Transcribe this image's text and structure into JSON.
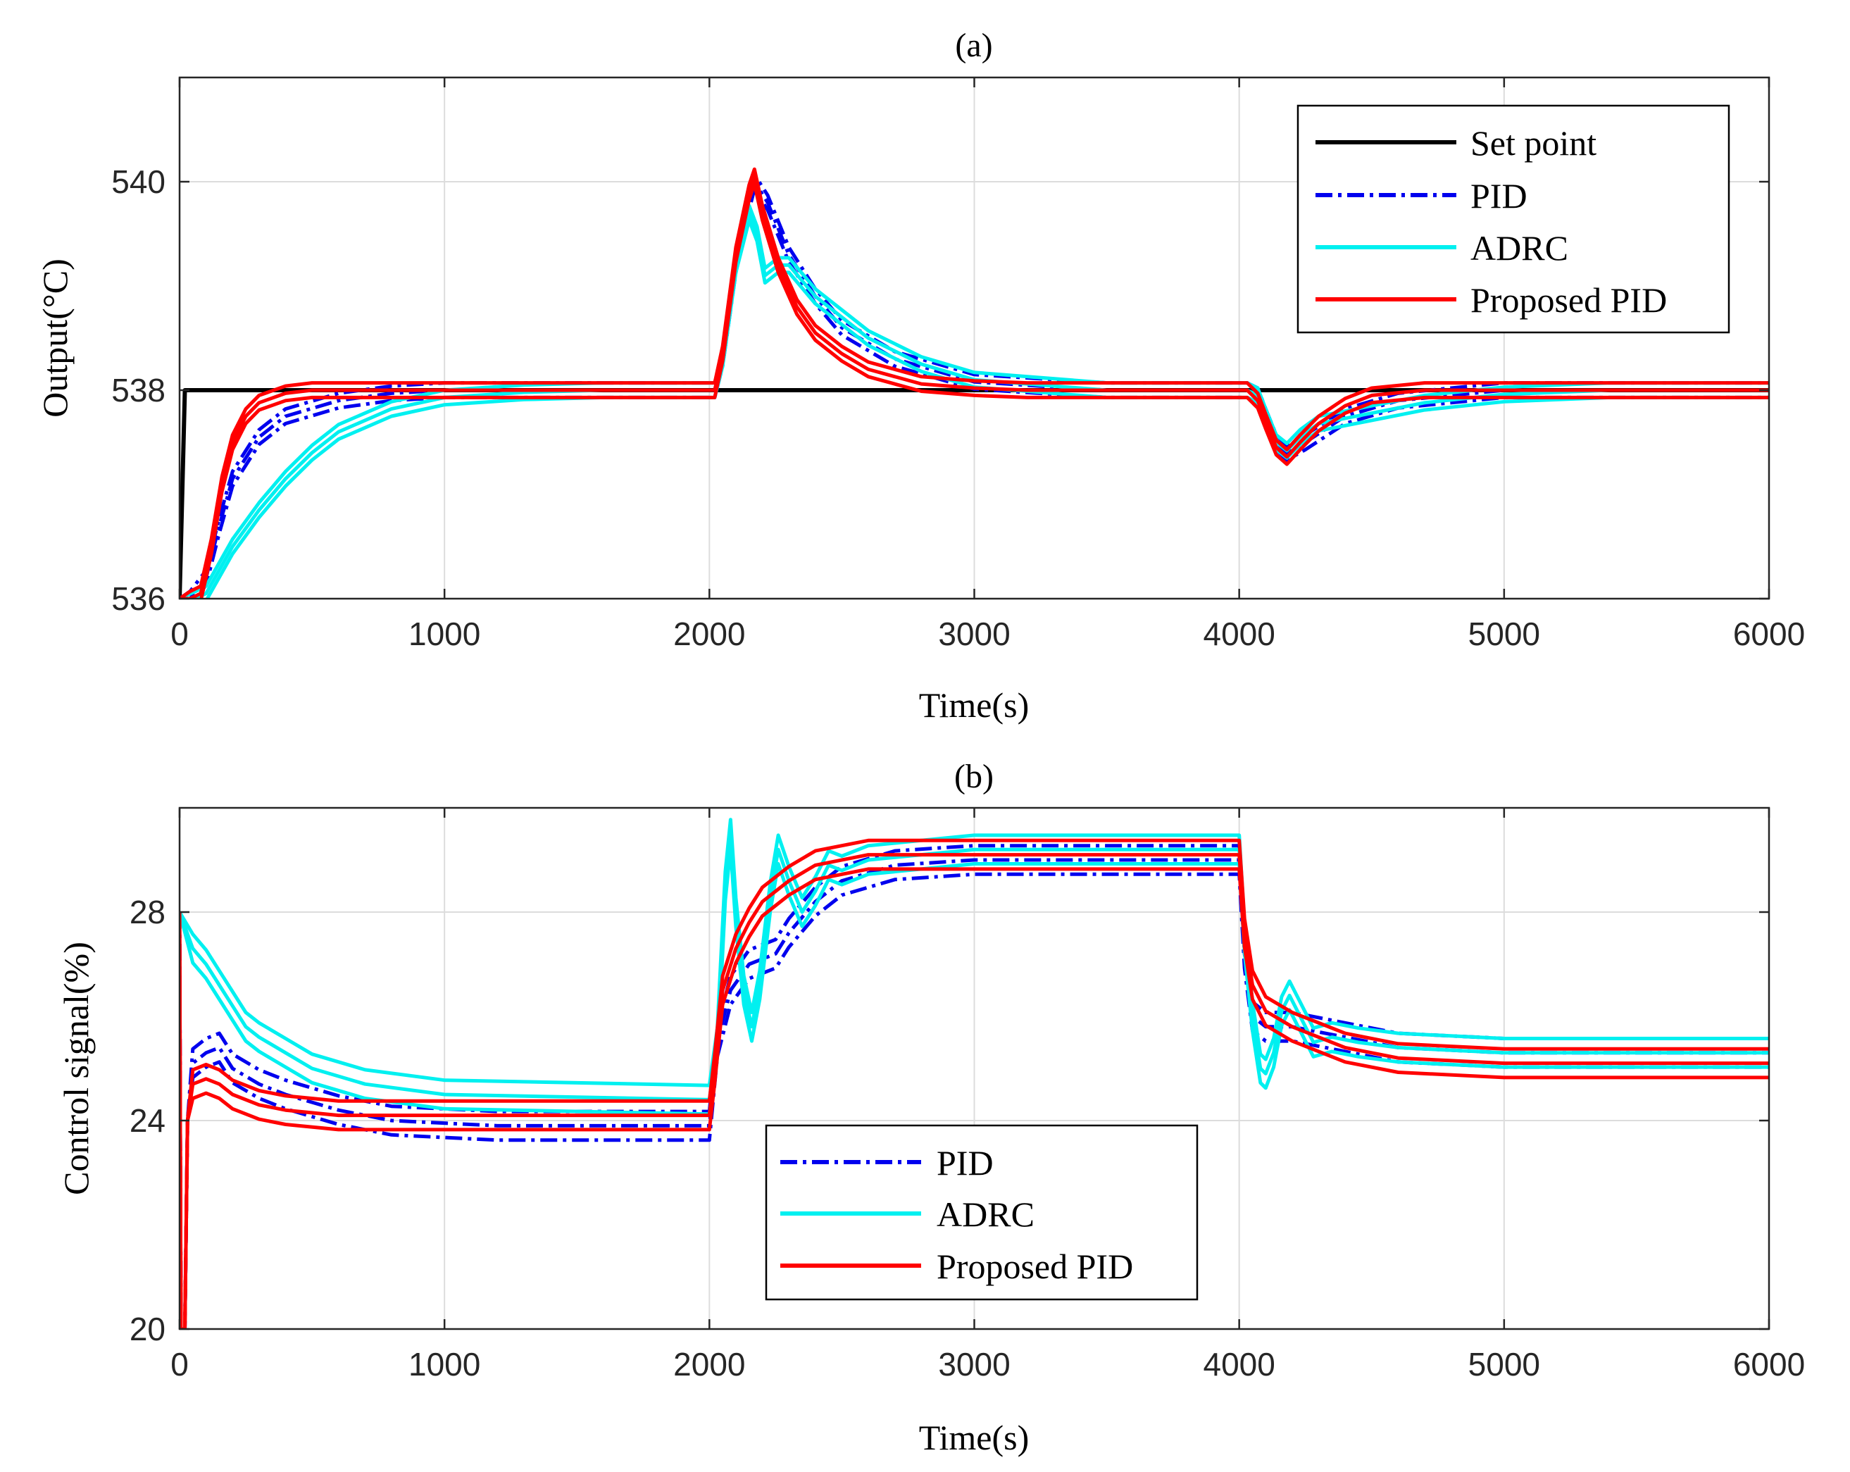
{
  "chart_data": [
    {
      "id": "a",
      "type": "line",
      "title": "(a)",
      "xlabel": "Time(s)",
      "ylabel": "Output(°C)",
      "xlim": [
        0,
        6000
      ],
      "ylim": [
        536,
        541
      ],
      "xticks": [
        0,
        1000,
        2000,
        3000,
        4000,
        5000,
        6000
      ],
      "yticks": [
        536,
        538,
        540
      ],
      "grid": true,
      "legend_position": "top-right",
      "series": [
        {
          "name": "Set point",
          "color": "#000000",
          "style": "solid",
          "points": [
            [
              0,
              536
            ],
            [
              20,
              538
            ],
            [
              6000,
              538
            ]
          ]
        },
        {
          "name": "PID",
          "color": "#0000ee",
          "style": "dashdot",
          "variants": [
            0.0,
            0.5,
            1.0
          ],
          "points": [
            [
              0,
              536
            ],
            [
              40,
              536
            ],
            [
              100,
              536.2
            ],
            [
              150,
              536.7
            ],
            [
              200,
              537.15
            ],
            [
              300,
              537.55
            ],
            [
              400,
              537.75
            ],
            [
              600,
              537.9
            ],
            [
              800,
              537.97
            ],
            [
              1000,
              538
            ],
            [
              2020,
              538
            ],
            [
              2050,
              538.3
            ],
            [
              2100,
              539.2
            ],
            [
              2150,
              539.8
            ],
            [
              2170,
              540.0
            ],
            [
              2220,
              539.8
            ],
            [
              2300,
              539.3
            ],
            [
              2400,
              538.9
            ],
            [
              2500,
              538.6
            ],
            [
              2700,
              538.3
            ],
            [
              3000,
              538.08
            ],
            [
              3500,
              538
            ],
            [
              4030,
              538
            ],
            [
              4070,
              537.95
            ],
            [
              4100,
              537.75
            ],
            [
              4140,
              537.5
            ],
            [
              4180,
              537.4
            ],
            [
              4250,
              537.5
            ],
            [
              4400,
              537.75
            ],
            [
              4600,
              537.9
            ],
            [
              5000,
              538
            ],
            [
              6000,
              538
            ]
          ]
        },
        {
          "name": "ADRC",
          "color": "#00f0f0",
          "style": "solid",
          "variants": [
            0.0,
            0.5,
            1.0
          ],
          "points": [
            [
              0,
              536
            ],
            [
              60,
              536
            ],
            [
              100,
              536.05
            ],
            [
              200,
              536.5
            ],
            [
              300,
              536.85
            ],
            [
              400,
              537.15
            ],
            [
              500,
              537.4
            ],
            [
              600,
              537.6
            ],
            [
              800,
              537.82
            ],
            [
              1000,
              537.93
            ],
            [
              1300,
              537.98
            ],
            [
              1600,
              538
            ],
            [
              2020,
              538
            ],
            [
              2050,
              538.3
            ],
            [
              2100,
              539.2
            ],
            [
              2150,
              539.7
            ],
            [
              2180,
              539.5
            ],
            [
              2210,
              539.1
            ],
            [
              2260,
              539.2
            ],
            [
              2300,
              539.2
            ],
            [
              2400,
              538.9
            ],
            [
              2500,
              538.7
            ],
            [
              2600,
              538.5
            ],
            [
              2800,
              538.25
            ],
            [
              3000,
              538.1
            ],
            [
              3500,
              538
            ],
            [
              4030,
              538
            ],
            [
              4070,
              537.95
            ],
            [
              4100,
              537.75
            ],
            [
              4140,
              537.5
            ],
            [
              4180,
              537.42
            ],
            [
              4230,
              537.55
            ],
            [
              4300,
              537.68
            ],
            [
              4500,
              537.78
            ],
            [
              4700,
              537.88
            ],
            [
              5000,
              537.96
            ],
            [
              5400,
              538
            ],
            [
              6000,
              538
            ]
          ]
        },
        {
          "name": "Proposed PID",
          "color": "#ff0000",
          "style": "solid",
          "variants": [
            0.0,
            0.5,
            1.0
          ],
          "points": [
            [
              0,
              536
            ],
            [
              40,
              536
            ],
            [
              80,
              536.05
            ],
            [
              120,
              536.5
            ],
            [
              160,
              537.1
            ],
            [
              200,
              537.5
            ],
            [
              250,
              537.75
            ],
            [
              300,
              537.88
            ],
            [
              400,
              537.97
            ],
            [
              500,
              538
            ],
            [
              2020,
              538
            ],
            [
              2050,
              538.35
            ],
            [
              2100,
              539.3
            ],
            [
              2150,
              539.9
            ],
            [
              2170,
              540.05
            ],
            [
              2200,
              539.7
            ],
            [
              2260,
              539.2
            ],
            [
              2330,
              538.8
            ],
            [
              2400,
              538.55
            ],
            [
              2500,
              538.35
            ],
            [
              2600,
              538.2
            ],
            [
              2800,
              538.06
            ],
            [
              3000,
              538.02
            ],
            [
              3200,
              538
            ],
            [
              4030,
              538
            ],
            [
              4070,
              537.9
            ],
            [
              4100,
              537.7
            ],
            [
              4140,
              537.45
            ],
            [
              4180,
              537.36
            ],
            [
              4230,
              537.5
            ],
            [
              4300,
              537.68
            ],
            [
              4400,
              537.85
            ],
            [
              4500,
              537.95
            ],
            [
              4700,
              538
            ],
            [
              6000,
              538
            ]
          ]
        }
      ]
    },
    {
      "id": "b",
      "type": "line",
      "title": "(b)",
      "xlabel": "Time(s)",
      "ylabel": "Control signal(%)",
      "xlim": [
        0,
        6000
      ],
      "ylim": [
        20,
        30
      ],
      "xticks": [
        0,
        1000,
        2000,
        3000,
        4000,
        5000,
        6000
      ],
      "yticks": [
        20,
        24,
        28
      ],
      "grid": true,
      "legend_position": "bottom-center",
      "series": [
        {
          "name": "PID",
          "color": "#0000ee",
          "style": "dashdot",
          "variants": [
            0.0,
            0.5,
            1.0
          ],
          "points": [
            [
              0,
              28
            ],
            [
              5,
              20
            ],
            [
              20,
              20
            ],
            [
              30,
              24
            ],
            [
              50,
              25.1
            ],
            [
              100,
              25.3
            ],
            [
              150,
              25.4
            ],
            [
              200,
              25.0
            ],
            [
              300,
              24.7
            ],
            [
              400,
              24.5
            ],
            [
              600,
              24.2
            ],
            [
              800,
              24.0
            ],
            [
              1200,
              23.9
            ],
            [
              2000,
              23.9
            ],
            [
              2030,
              25.5
            ],
            [
              2080,
              26.5
            ],
            [
              2150,
              27.0
            ],
            [
              2250,
              27.2
            ],
            [
              2300,
              27.6
            ],
            [
              2400,
              28.2
            ],
            [
              2500,
              28.6
            ],
            [
              2700,
              28.9
            ],
            [
              3000,
              29.0
            ],
            [
              3500,
              29.0
            ],
            [
              4000,
              29.0
            ],
            [
              4020,
              27.2
            ],
            [
              4050,
              26.0
            ],
            [
              4100,
              25.8
            ],
            [
              4200,
              25.8
            ],
            [
              4400,
              25.6
            ],
            [
              4600,
              25.4
            ],
            [
              5000,
              25.3
            ],
            [
              6000,
              25.3
            ]
          ]
        },
        {
          "name": "ADRC",
          "color": "#00f0f0",
          "style": "solid",
          "variants": [
            0.0,
            0.5,
            1.0
          ],
          "points": [
            [
              0,
              28
            ],
            [
              50,
              27.3
            ],
            [
              100,
              27.0
            ],
            [
              150,
              26.6
            ],
            [
              200,
              26.2
            ],
            [
              250,
              25.8
            ],
            [
              300,
              25.6
            ],
            [
              400,
              25.3
            ],
            [
              500,
              25.0
            ],
            [
              700,
              24.7
            ],
            [
              1000,
              24.5
            ],
            [
              2000,
              24.4
            ],
            [
              2030,
              25.5
            ],
            [
              2060,
              28.5
            ],
            [
              2080,
              29.5
            ],
            [
              2100,
              28.0
            ],
            [
              2130,
              26.5
            ],
            [
              2160,
              25.8
            ],
            [
              2190,
              26.6
            ],
            [
              2230,
              28.3
            ],
            [
              2260,
              29.2
            ],
            [
              2300,
              28.6
            ],
            [
              2350,
              28.0
            ],
            [
              2400,
              28.4
            ],
            [
              2450,
              28.9
            ],
            [
              2500,
              28.8
            ],
            [
              2600,
              29.0
            ],
            [
              2800,
              29.1
            ],
            [
              3000,
              29.2
            ],
            [
              4000,
              29.2
            ],
            [
              4020,
              27.5
            ],
            [
              4050,
              26.0
            ],
            [
              4080,
              25.0
            ],
            [
              4100,
              24.9
            ],
            [
              4130,
              25.3
            ],
            [
              4160,
              26.1
            ],
            [
              4190,
              26.4
            ],
            [
              4230,
              26.0
            ],
            [
              4280,
              25.5
            ],
            [
              4350,
              25.6
            ],
            [
              4450,
              25.5
            ],
            [
              4600,
              25.4
            ],
            [
              5000,
              25.3
            ],
            [
              6000,
              25.3
            ]
          ]
        },
        {
          "name": "Proposed PID",
          "color": "#ff0000",
          "style": "solid",
          "variants": [
            0.0,
            0.5,
            1.0
          ],
          "points": [
            [
              0,
              28
            ],
            [
              5,
              20
            ],
            [
              20,
              20
            ],
            [
              30,
              24
            ],
            [
              50,
              24.7
            ],
            [
              100,
              24.8
            ],
            [
              150,
              24.7
            ],
            [
              200,
              24.5
            ],
            [
              300,
              24.3
            ],
            [
              400,
              24.2
            ],
            [
              600,
              24.1
            ],
            [
              1000,
              24.1
            ],
            [
              2000,
              24.1
            ],
            [
              2020,
              25.0
            ],
            [
              2050,
              26.5
            ],
            [
              2100,
              27.3
            ],
            [
              2150,
              27.8
            ],
            [
              2200,
              28.2
            ],
            [
              2300,
              28.6
            ],
            [
              2400,
              28.9
            ],
            [
              2600,
              29.1
            ],
            [
              3000,
              29.1
            ],
            [
              4000,
              29.1
            ],
            [
              4020,
              27.6
            ],
            [
              4050,
              26.6
            ],
            [
              4100,
              26.1
            ],
            [
              4200,
              25.8
            ],
            [
              4400,
              25.4
            ],
            [
              4600,
              25.2
            ],
            [
              5000,
              25.1
            ],
            [
              6000,
              25.1
            ]
          ]
        }
      ]
    }
  ]
}
